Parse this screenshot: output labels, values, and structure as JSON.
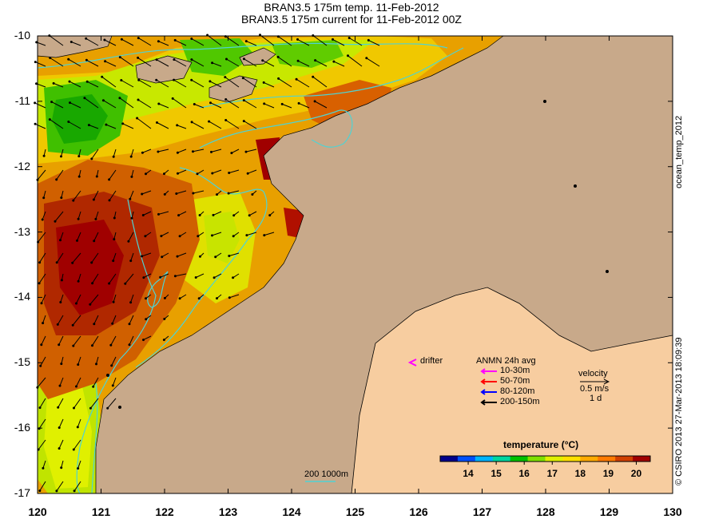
{
  "title": {
    "line1": "BRAN3.5 175m temp. 11-Feb-2012",
    "line2": "BRAN3.5 175m current for 11-Feb-2012 00Z"
  },
  "map": {
    "lon_range": [
      120,
      130
    ],
    "lat_range": [
      -17,
      -10
    ],
    "x_ticks": [
      "120",
      "121",
      "122",
      "123",
      "124",
      "125",
      "126",
      "127",
      "128",
      "129",
      "130"
    ],
    "y_ticks": [
      "-10",
      "-11",
      "-12",
      "-13",
      "-14",
      "-15",
      "-16",
      "-17"
    ],
    "land_color": "#c8a98a",
    "bathymetry_color": "#4fd3d3",
    "drifter_color": "#ff00ff"
  },
  "side_labels": {
    "right_top": "ocean_temp_2012",
    "right_bottom": "© CSIRO 2013   27-Mar-2013 18:09:39"
  },
  "legend": {
    "drifter": "drifter",
    "anmn_title": "ANMN 24h avg",
    "anmn_items": [
      {
        "label": "10-30m",
        "color": "#ff00ff"
      },
      {
        "label": "50-70m",
        "color": "#ff0000"
      },
      {
        "label": "80-120m",
        "color": "#0000ff"
      },
      {
        "label": "200-150m",
        "color": "#000000"
      }
    ],
    "velocity_title": "velocity",
    "velocity_scale": "0.5 m/s",
    "velocity_time": "1 d",
    "bathy_label": "200  1000m"
  },
  "colorbar": {
    "title": "temperature (°C)",
    "ticks": [
      "14",
      "15",
      "16",
      "17",
      "18",
      "19",
      "20"
    ],
    "range": [
      13,
      20.5
    ],
    "colors": [
      "#00008b",
      "#0050ff",
      "#00b4ff",
      "#00d6a0",
      "#00c000",
      "#80e000",
      "#e0f000",
      "#ffe000",
      "#ffaa00",
      "#ff7a00",
      "#d04000",
      "#a00000"
    ]
  }
}
